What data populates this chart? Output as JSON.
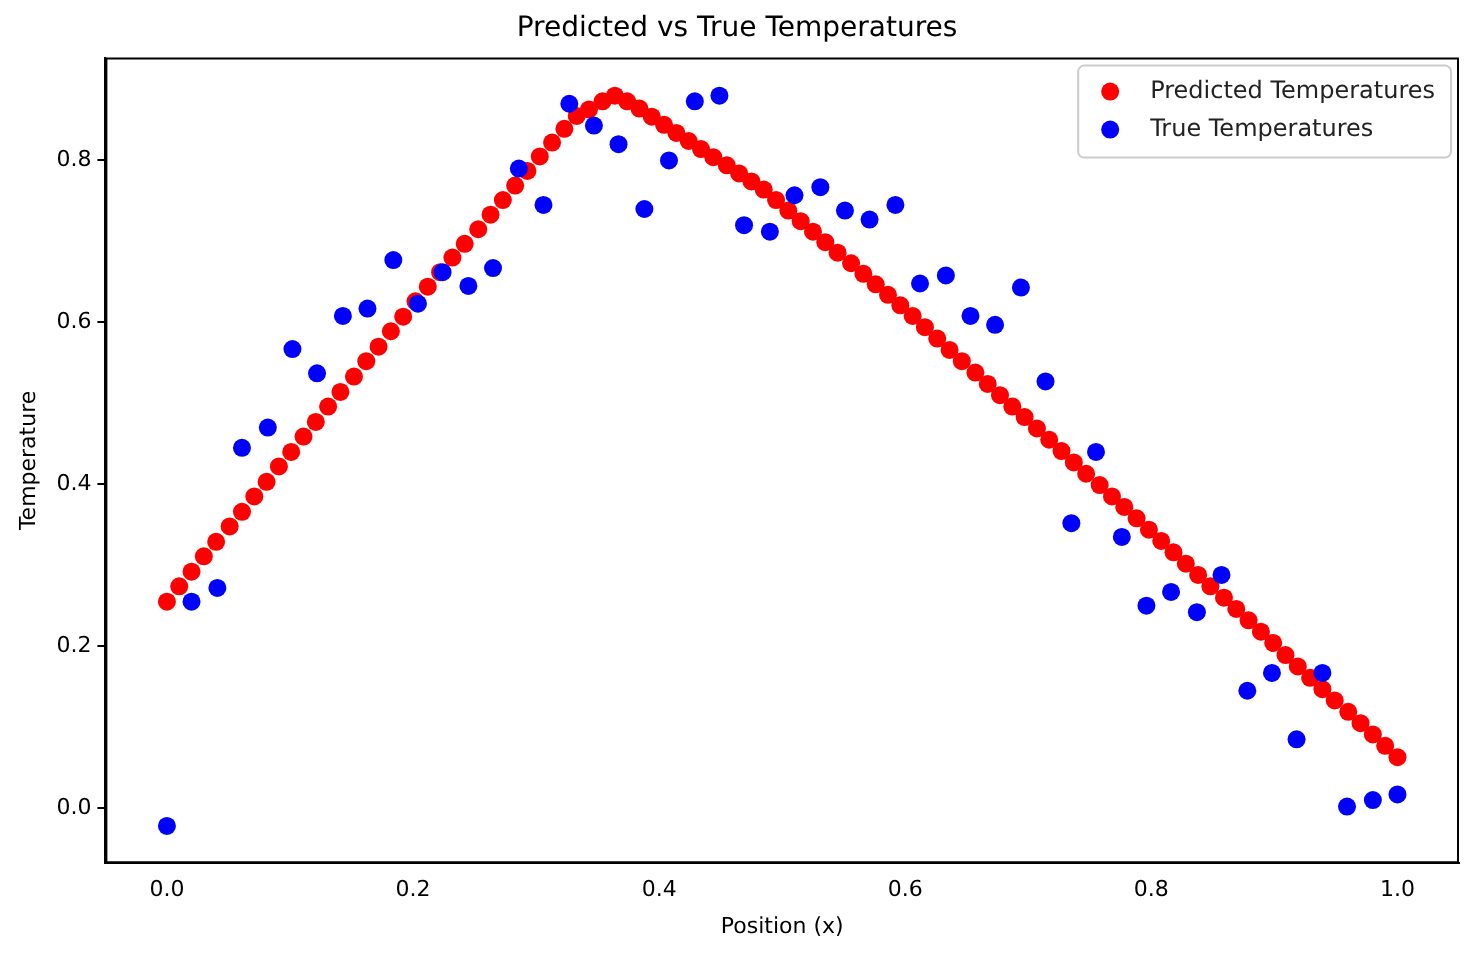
{
  "chart_data": {
    "type": "scatter",
    "title": "Predicted vs True Temperatures",
    "xlabel": "Position (x)",
    "ylabel": "Temperature",
    "xlim": [
      -0.05,
      1.05
    ],
    "ylim": [
      -0.068,
      0.927
    ],
    "xticks": [
      {
        "value": 0,
        "label": "0.0"
      },
      0.2,
      0.4,
      0.6,
      0.8,
      {
        "value": 1,
        "label": "1.0"
      }
    ],
    "yticks": [
      {
        "value": 0,
        "label": "0.0"
      },
      0.2,
      0.4,
      0.6,
      0.8
    ],
    "grid": false,
    "legend": "top right",
    "marker": "circle",
    "series": [
      {
        "name": "Predicted Temperatures",
        "color": "#ff0000",
        "x": [
          0,
          0.01,
          0.02,
          0.03,
          0.04,
          0.051,
          0.061,
          0.071,
          0.081,
          0.091,
          0.101,
          0.111,
          0.121,
          0.131,
          0.141,
          0.152,
          0.162,
          0.172,
          0.182,
          0.192,
          0.202,
          0.212,
          0.222,
          0.232,
          0.242,
          0.253,
          0.263,
          0.273,
          0.283,
          0.293,
          0.303,
          0.313,
          0.323,
          0.333,
          0.343,
          0.354,
          0.364,
          0.374,
          0.384,
          0.394,
          0.404,
          0.414,
          0.424,
          0.434,
          0.444,
          0.455,
          0.465,
          0.475,
          0.485,
          0.495,
          0.505,
          0.515,
          0.525,
          0.535,
          0.545,
          0.556,
          0.566,
          0.576,
          0.586,
          0.596,
          0.606,
          0.616,
          0.626,
          0.636,
          0.646,
          0.657,
          0.667,
          0.677,
          0.687,
          0.697,
          0.707,
          0.717,
          0.727,
          0.737,
          0.747,
          0.758,
          0.768,
          0.778,
          0.788,
          0.798,
          0.808,
          0.818,
          0.828,
          0.838,
          0.848,
          0.859,
          0.869,
          0.879,
          0.889,
          0.899,
          0.909,
          0.919,
          0.929,
          0.939,
          0.949,
          0.96,
          0.97,
          0.98,
          0.99,
          1.0
        ],
        "values": [
          0.255,
          0.274,
          0.292,
          0.311,
          0.329,
          0.348,
          0.366,
          0.385,
          0.403,
          0.422,
          0.44,
          0.459,
          0.477,
          0.496,
          0.514,
          0.533,
          0.552,
          0.57,
          0.589,
          0.607,
          0.626,
          0.644,
          0.662,
          0.68,
          0.697,
          0.715,
          0.733,
          0.751,
          0.769,
          0.787,
          0.805,
          0.822,
          0.839,
          0.855,
          0.863,
          0.873,
          0.88,
          0.873,
          0.864,
          0.854,
          0.844,
          0.834,
          0.824,
          0.814,
          0.804,
          0.794,
          0.784,
          0.774,
          0.764,
          0.751,
          0.738,
          0.725,
          0.712,
          0.699,
          0.686,
          0.673,
          0.66,
          0.647,
          0.634,
          0.621,
          0.608,
          0.594,
          0.58,
          0.566,
          0.552,
          0.538,
          0.524,
          0.51,
          0.496,
          0.483,
          0.469,
          0.455,
          0.441,
          0.427,
          0.413,
          0.399,
          0.385,
          0.372,
          0.358,
          0.344,
          0.33,
          0.316,
          0.302,
          0.288,
          0.274,
          0.26,
          0.246,
          0.232,
          0.218,
          0.204,
          0.189,
          0.175,
          0.161,
          0.147,
          0.133,
          0.119,
          0.105,
          0.091,
          0.077,
          0.063
        ]
      },
      {
        "name": "True Temperatures",
        "color": "#0000ff",
        "x": [
          0,
          0.02,
          0.041,
          0.061,
          0.082,
          0.102,
          0.122,
          0.143,
          0.163,
          0.184,
          0.204,
          0.224,
          0.245,
          0.265,
          0.286,
          0.306,
          0.327,
          0.347,
          0.367,
          0.388,
          0.408,
          0.429,
          0.449,
          0.469,
          0.49,
          0.51,
          0.531,
          0.551,
          0.571,
          0.592,
          0.612,
          0.633,
          0.653,
          0.673,
          0.694,
          0.714,
          0.735,
          0.755,
          0.776,
          0.796,
          0.816,
          0.837,
          0.857,
          0.878,
          0.898,
          0.918,
          0.939,
          0.959,
          0.98,
          1.0
        ],
        "values": [
          -0.022,
          0.255,
          0.272,
          0.445,
          0.47,
          0.567,
          0.537,
          0.608,
          0.617,
          0.677,
          0.623,
          0.662,
          0.645,
          0.667,
          0.79,
          0.745,
          0.87,
          0.843,
          0.82,
          0.74,
          0.8,
          0.873,
          0.88,
          0.72,
          0.712,
          0.757,
          0.767,
          0.738,
          0.727,
          0.745,
          0.648,
          0.658,
          0.608,
          0.597,
          0.643,
          0.527,
          0.352,
          0.44,
          0.335,
          0.25,
          0.267,
          0.242,
          0.288,
          0.145,
          0.167,
          0.085,
          0.167,
          0.002,
          0.01,
          0.017
        ]
      }
    ]
  }
}
